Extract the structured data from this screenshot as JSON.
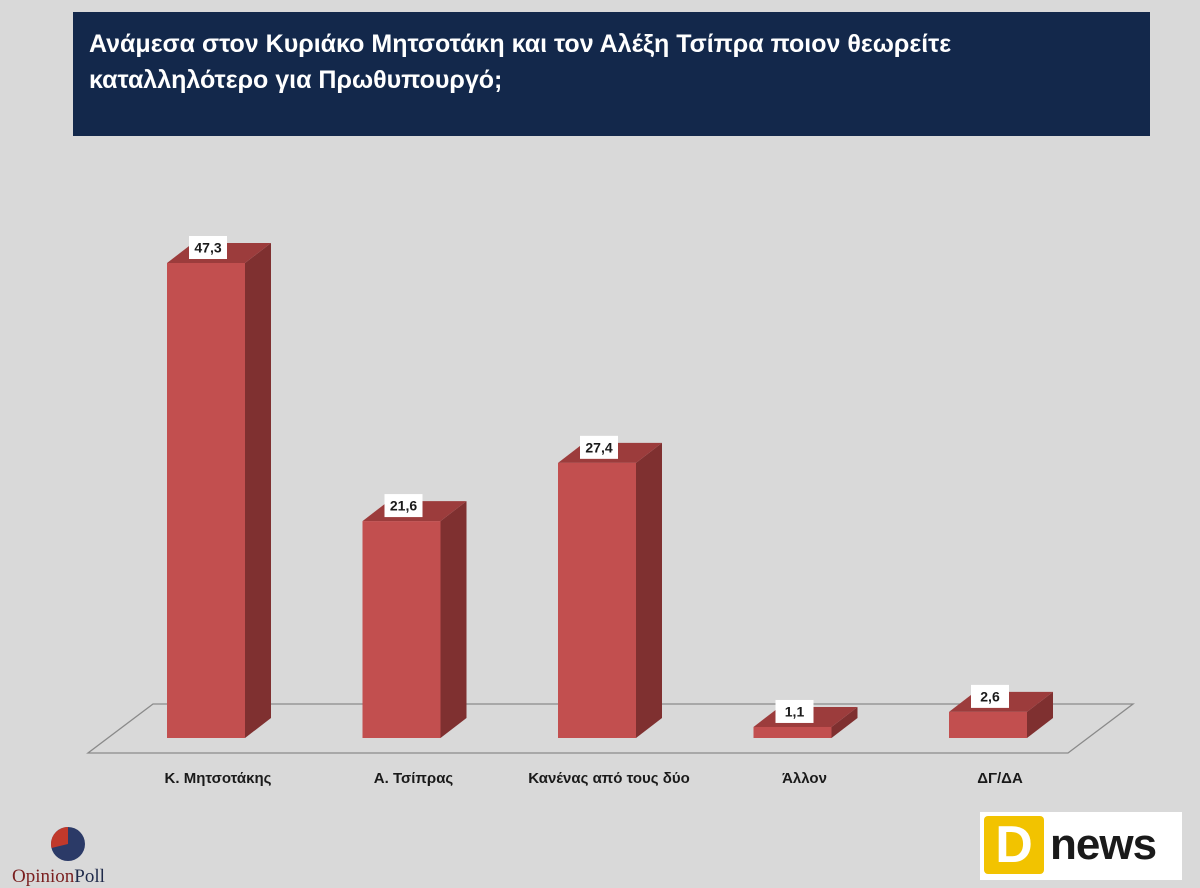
{
  "header": {
    "title_line1": "Ανάμεσα στον Κυριάκο Μητσοτάκη και τον Αλέξη Τσίπρα ποιον θεωρείτε",
    "title_line2": "καταλληλότερο για Πρωθυπουργό;"
  },
  "chart_data": {
    "type": "bar",
    "style": "3d",
    "title": "Ανάμεσα στον Κυριάκο Μητσοτάκη και τον Αλέξη Τσίπρα ποιον θεωρείτε καταλληλότερο για Πρωθυπουργό;",
    "categories": [
      "Κ. Μητσοτάκης",
      "Α. Τσίπρας",
      "Κανένας από τους δύο",
      "Άλλον",
      "ΔΓ/ΔΑ"
    ],
    "values": [
      47.3,
      21.6,
      27.4,
      1.1,
      2.6
    ],
    "value_labels": [
      "47,3",
      "21,6",
      "27,4",
      "1,1",
      "2,6"
    ],
    "ylim": [
      0,
      50
    ],
    "grid": false,
    "legend": "none",
    "colors": {
      "bar_front": "#c24f4f",
      "bar_side": "#7f3030",
      "bar_top": "#9c3c3c",
      "floor_stroke": "#8a8a8a"
    }
  },
  "branding": {
    "left_logo_part1": "Opinion",
    "left_logo_part2": "Poll",
    "right_logo_letter": "D",
    "right_logo_word": "news"
  }
}
